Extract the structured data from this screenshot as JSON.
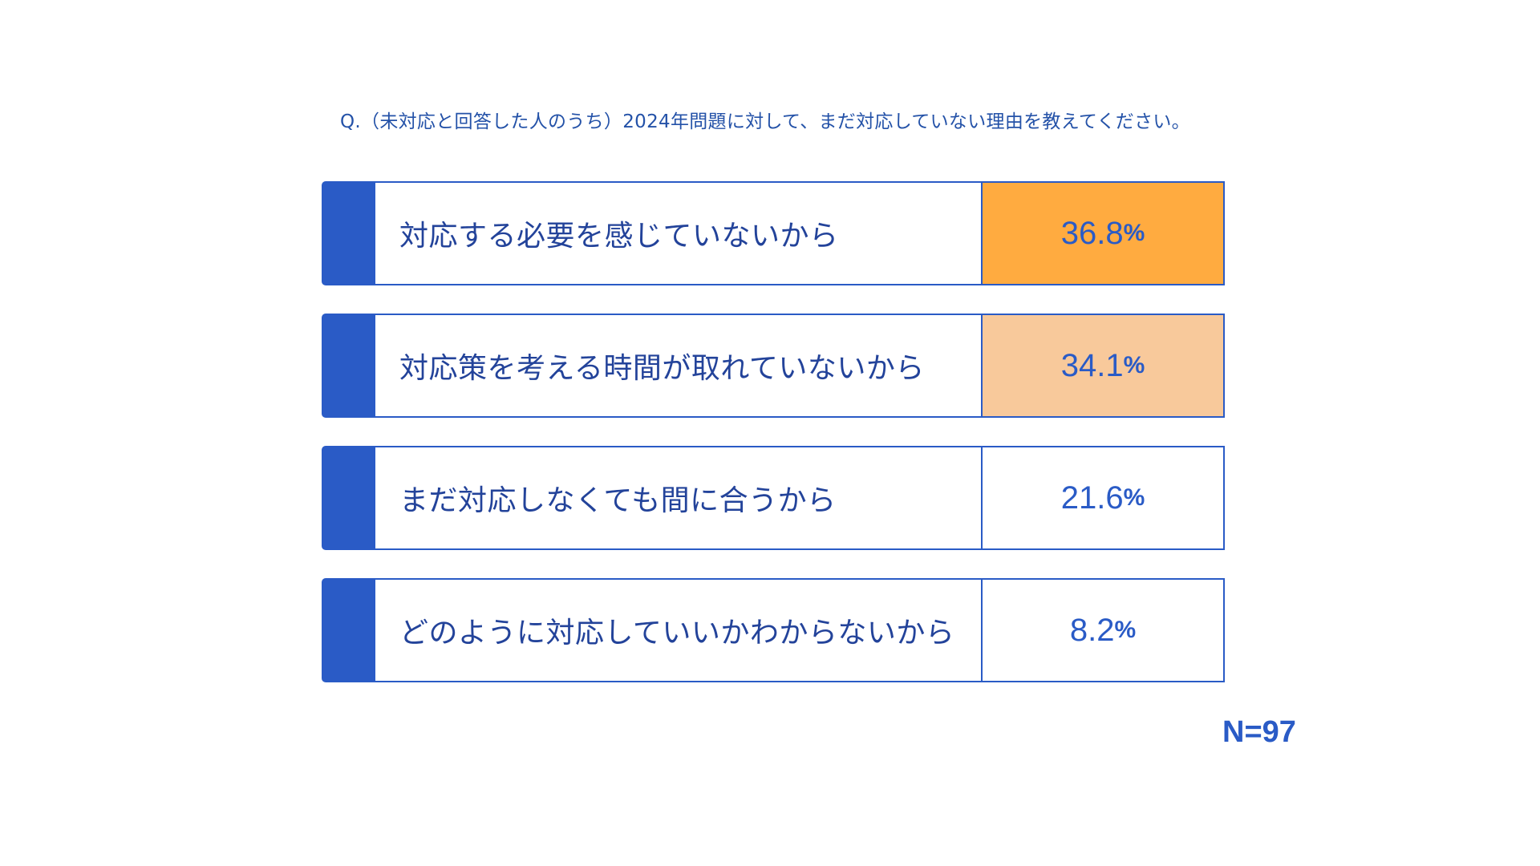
{
  "question": "Q.（未対応と回答した人のうち）2024年問題に対して、まだ対応していない理由を教えてください。",
  "sample_size": "N=97",
  "unit_suffix": "%",
  "colors": {
    "accent": "#2a5bc6",
    "rank1": "#ffab40",
    "rank2": "#f8c99b",
    "default": "#ffffff"
  },
  "chart_data": {
    "type": "bar",
    "title": "Q.（未対応と回答した人のうち）2024年問題に対して、まだ対応していない理由を教えてください。",
    "categories": [
      "対応する必要を感じていないから",
      "対応策を考える時間が取れていないから",
      "まだ対応しなくても間に合うから",
      "どのように対応していいかわからないから"
    ],
    "values": [
      36.8,
      34.1,
      21.6,
      8.2
    ],
    "value_labels": [
      "36.8",
      "34.1",
      "21.6",
      "8.2"
    ],
    "highlight": [
      "rank1",
      "rank2",
      "default",
      "default"
    ],
    "unit": "%"
  }
}
